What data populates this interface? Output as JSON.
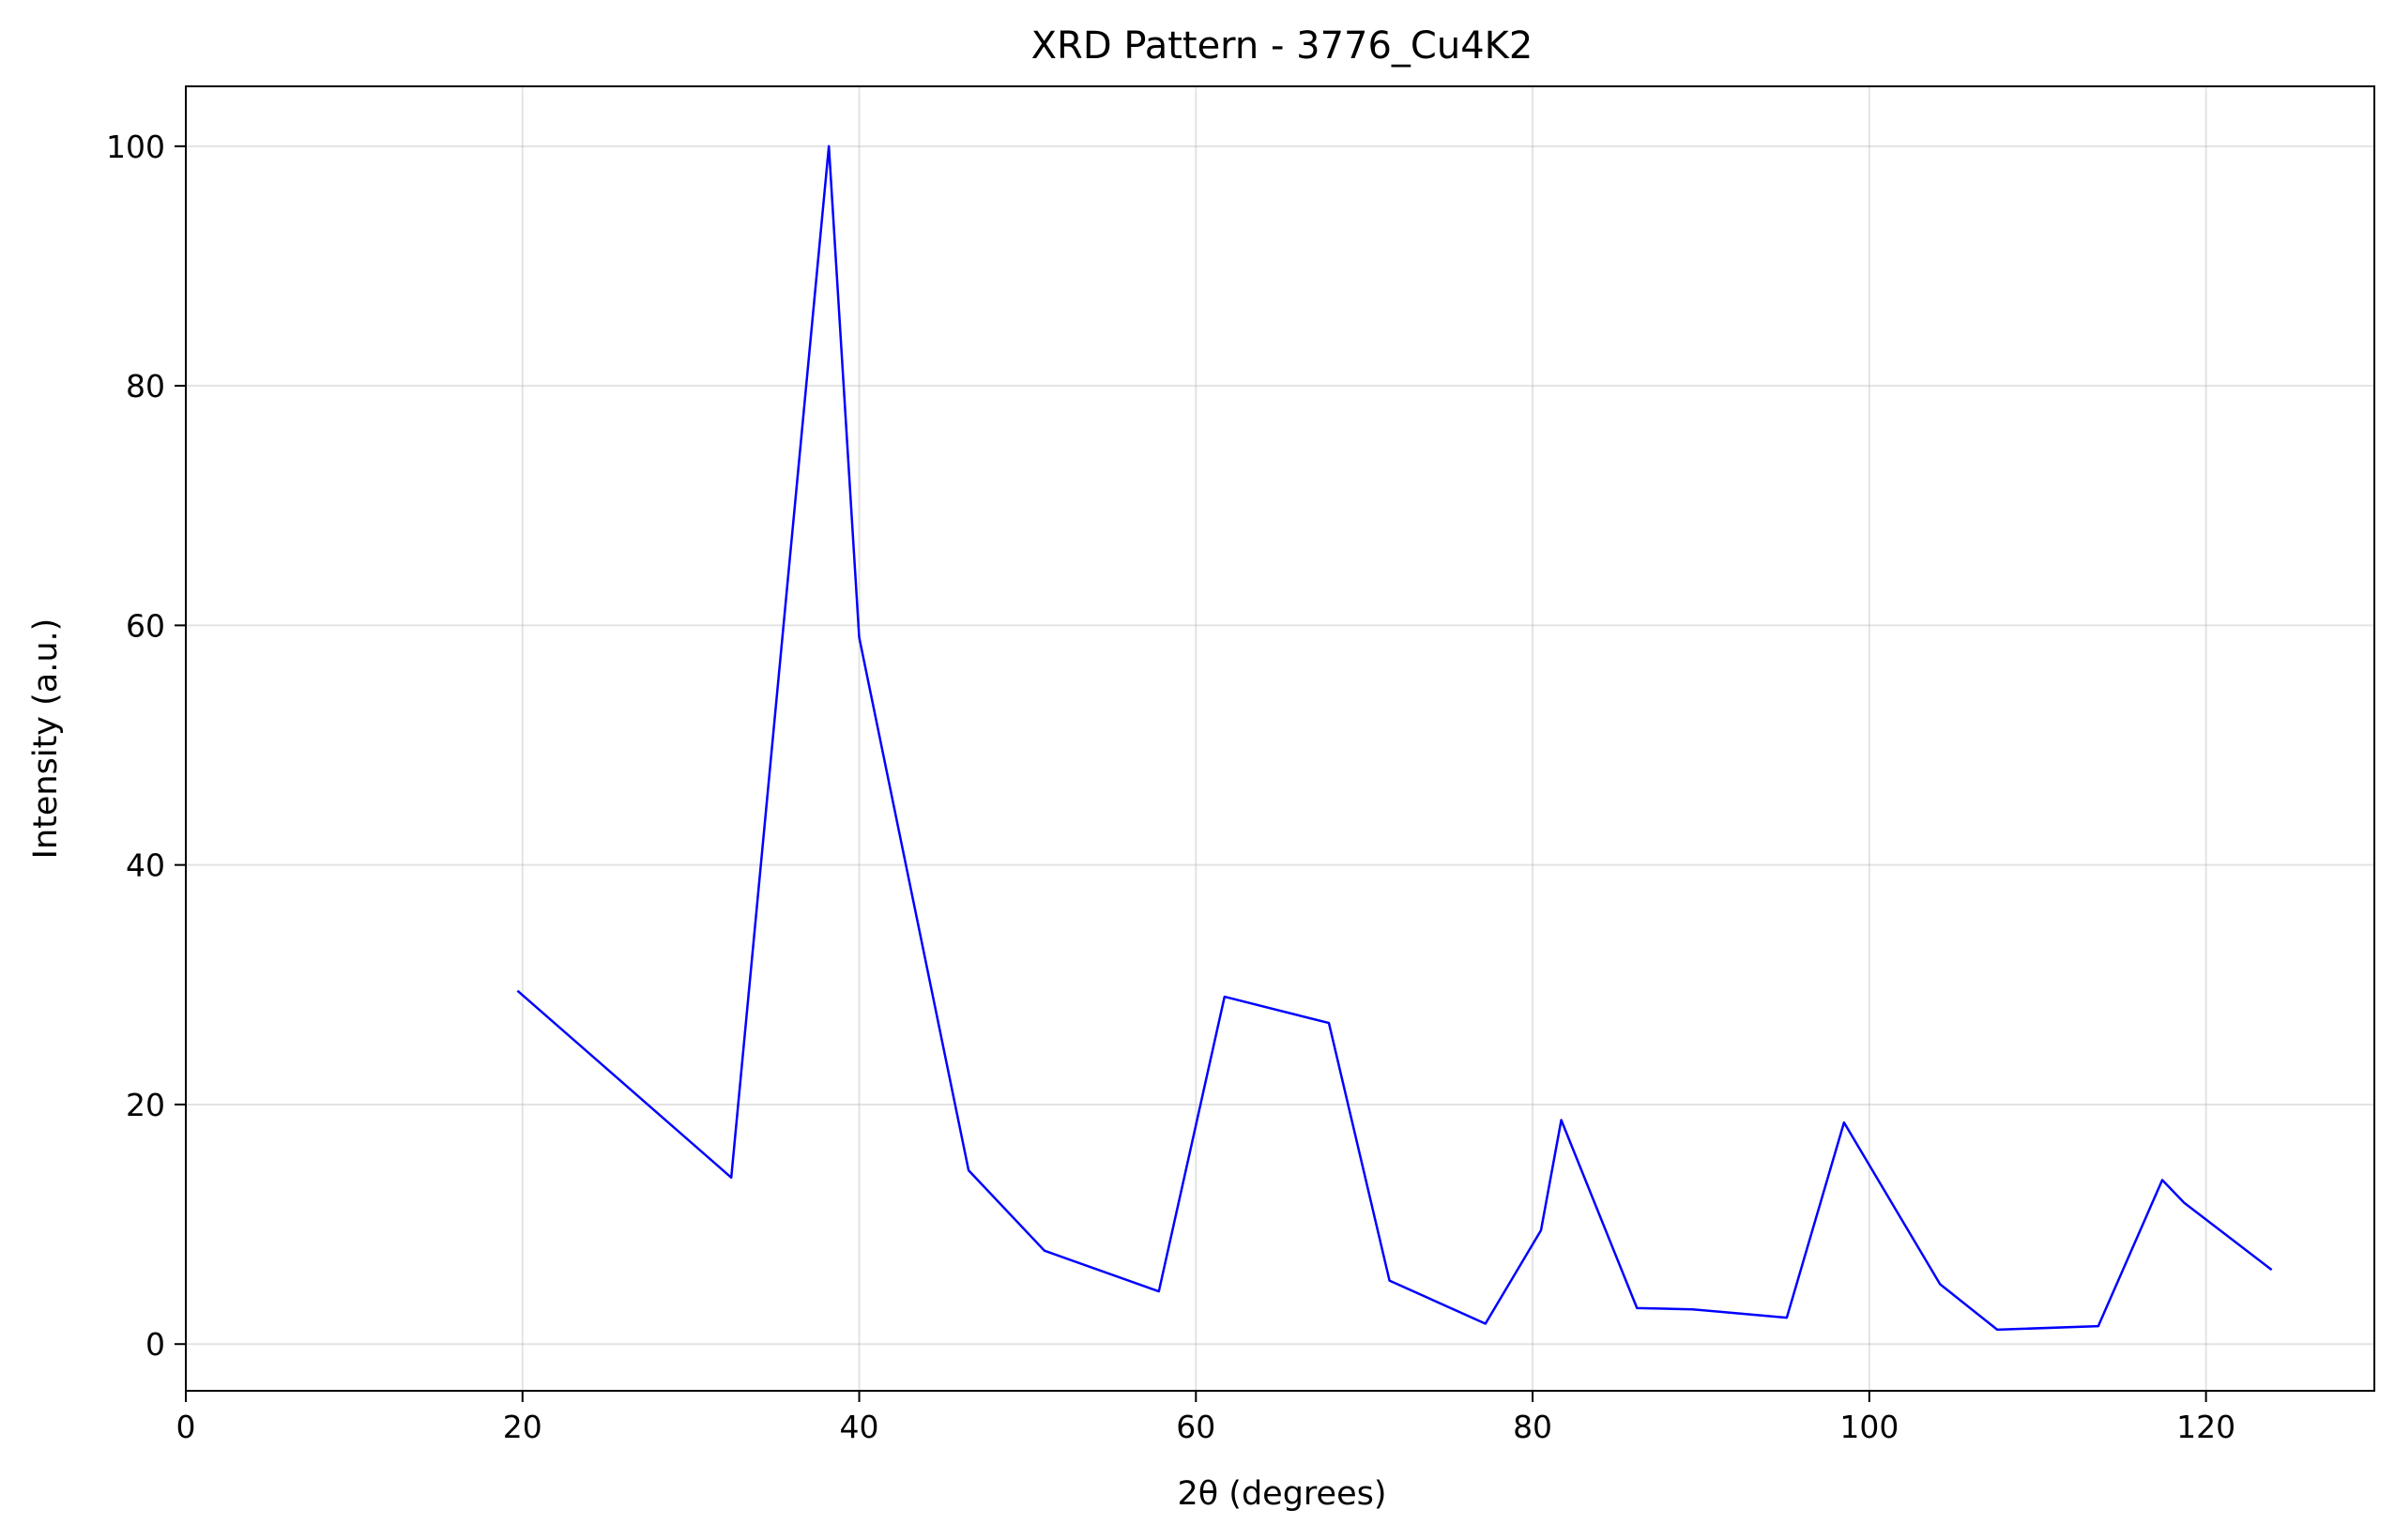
{
  "chart_data": {
    "type": "line",
    "title": "XRD Pattern - 3776_Cu4K2",
    "xlabel": "2θ (degrees)",
    "ylabel": "Intensity (a.u.)",
    "xlim": [
      0,
      130
    ],
    "ylim": [
      -3.9,
      105
    ],
    "xticks": [
      0,
      20,
      40,
      60,
      80,
      100,
      120
    ],
    "yticks": [
      0,
      20,
      40,
      60,
      80,
      100
    ],
    "grid": true,
    "legend": "none",
    "series": [
      {
        "color": "#0000ff",
        "x": [
          19.7,
          32.4,
          38.2,
          40.0,
          46.5,
          51.0,
          57.8,
          61.7,
          67.9,
          71.5,
          77.2,
          80.5,
          81.7,
          86.2,
          89.5,
          95.1,
          98.5,
          104.2,
          107.6,
          113.6,
          117.4,
          118.7,
          123.9
        ],
        "y": [
          29.5,
          13.9,
          100.0,
          59.0,
          14.5,
          7.8,
          4.4,
          29.0,
          26.8,
          5.3,
          1.7,
          9.5,
          18.7,
          3.0,
          2.9,
          2.2,
          18.5,
          5.0,
          1.2,
          1.5,
          13.7,
          11.8,
          6.2
        ]
      }
    ]
  }
}
